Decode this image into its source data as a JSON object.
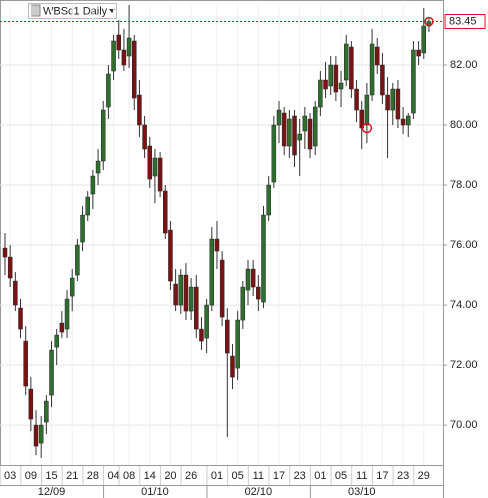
{
  "chart_data": {
    "type": "candlestick",
    "title": "WBSc1 Daily",
    "categories": [
      null,
      "03",
      null,
      null,
      null,
      "09",
      null,
      null,
      null,
      "15",
      null,
      null,
      null,
      "21",
      null,
      null,
      null,
      "28",
      null,
      null,
      null,
      "04",
      null,
      null,
      "08",
      null,
      null,
      null,
      "14",
      null,
      null,
      null,
      "20",
      null,
      null,
      null,
      "26",
      null,
      null,
      null,
      null,
      "01",
      null,
      null,
      null,
      "05",
      null,
      null,
      null,
      "11",
      null,
      null,
      null,
      "17",
      null,
      null,
      null,
      "23",
      null,
      null,
      null,
      "01",
      null,
      null,
      null,
      "05",
      null,
      null,
      null,
      "11",
      null,
      null,
      null,
      "17",
      null,
      null,
      null,
      "23",
      null,
      null,
      null,
      "29",
      null
    ],
    "month_categories": [
      null,
      null,
      null,
      null,
      null,
      null,
      null,
      null,
      null,
      "12/09",
      null,
      null,
      null,
      null,
      null,
      null,
      null,
      null,
      null,
      null,
      null,
      null,
      null,
      null,
      null,
      null,
      null,
      null,
      null,
      "01/10",
      null,
      null,
      null,
      null,
      null,
      null,
      null,
      null,
      null,
      null,
      null,
      null,
      null,
      null,
      null,
      null,
      null,
      null,
      null,
      "02/10",
      null,
      null,
      null,
      null,
      null,
      null,
      null,
      null,
      null,
      null,
      null,
      null,
      null,
      null,
      null,
      null,
      null,
      null,
      null,
      "03/10",
      null,
      null,
      null,
      null,
      null,
      null,
      null,
      null,
      null,
      null,
      null,
      null,
      null
    ],
    "open": [
      75.9,
      75.6,
      74.8,
      73.9,
      72.8,
      71.2,
      70.0,
      69.4,
      70.1,
      71.0,
      72.6,
      73.4,
      73.2,
      74.3,
      75.0,
      76.1,
      77.0,
      77.7,
      78.4,
      78.8,
      80.6,
      81.8,
      83.0,
      82.5,
      82.3,
      82.8,
      81.0,
      80.0,
      79.3,
      78.3,
      78.9,
      77.8,
      76.5,
      74.7,
      74.0,
      75.0,
      73.8,
      74.6,
      73.2,
      72.9,
      74.0,
      76.2,
      75.5,
      73.5,
      72.3,
      71.9,
      73.5,
      74.5,
      75.2,
      74.6,
      74.1,
      77.0,
      78.1,
      80.0,
      80.4,
      79.3,
      80.3,
      79.5,
      79.8,
      80.2,
      79.3,
      80.6,
      81.5,
      81.3,
      82.0,
      81.2,
      81.5,
      82.6,
      81.2,
      80.5,
      80.0,
      81.0,
      82.6,
      82.0,
      81.0,
      80.5,
      81.2,
      80.2,
      80.0,
      80.4,
      82.5,
      82.4,
      83.3
    ],
    "high": [
      76.4,
      76.0,
      75.1,
      74.2,
      73.3,
      71.6,
      70.5,
      70.3,
      71.0,
      72.8,
      73.2,
      73.8,
      74.5,
      75.2,
      76.2,
      77.3,
      77.8,
      78.5,
      79.2,
      80.8,
      82.0,
      83.0,
      83.5,
      83.2,
      84.0,
      83.0,
      81.5,
      80.3,
      79.6,
      79.2,
      79.1,
      78.0,
      76.8,
      75.2,
      75.2,
      75.4,
      74.9,
      75.0,
      73.6,
      74.2,
      76.6,
      76.8,
      75.8,
      73.9,
      72.7,
      73.8,
      74.8,
      75.5,
      75.5,
      75.0,
      77.3,
      78.3,
      80.3,
      80.8,
      80.6,
      80.5,
      80.5,
      80.2,
      80.6,
      80.4,
      80.8,
      81.8,
      82.1,
      82.3,
      82.3,
      81.8,
      83.0,
      82.8,
      81.5,
      80.8,
      81.4,
      83.2,
      82.9,
      82.4,
      81.6,
      81.4,
      81.5,
      80.6,
      80.4,
      82.8,
      82.8,
      83.9,
      83.6
    ],
    "low": [
      75.0,
      74.6,
      73.8,
      72.9,
      71.0,
      69.8,
      69.0,
      68.9,
      69.7,
      70.6,
      72.0,
      72.9,
      72.9,
      73.8,
      74.8,
      75.8,
      76.8,
      77.2,
      78.0,
      78.5,
      80.2,
      81.5,
      82.2,
      81.8,
      81.9,
      80.5,
      79.6,
      78.9,
      77.9,
      77.4,
      77.6,
      76.2,
      74.5,
      73.8,
      73.7,
      73.5,
      73.5,
      72.9,
      72.5,
      72.4,
      73.8,
      75.2,
      73.3,
      69.6,
      71.2,
      71.5,
      73.2,
      74.0,
      74.3,
      73.8,
      73.9,
      76.8,
      77.9,
      79.4,
      79.0,
      78.9,
      78.6,
      78.3,
      79.2,
      78.9,
      79.0,
      80.3,
      80.9,
      81.0,
      80.8,
      80.6,
      81.3,
      80.9,
      80.1,
      79.2,
      79.4,
      80.8,
      81.7,
      80.7,
      78.9,
      80.0,
      79.9,
      79.7,
      79.6,
      80.2,
      82.0,
      82.2,
      83.1
    ],
    "close": [
      75.6,
      74.9,
      74.0,
      73.2,
      71.3,
      70.2,
      69.3,
      70.0,
      70.8,
      72.5,
      73.0,
      73.1,
      74.2,
      74.9,
      76.0,
      77.0,
      77.6,
      78.3,
      78.8,
      80.5,
      81.7,
      82.8,
      82.5,
      82.0,
      82.9,
      80.9,
      80.0,
      79.2,
      78.2,
      78.9,
      77.8,
      76.4,
      74.8,
      74.0,
      75.0,
      73.8,
      74.6,
      73.2,
      72.8,
      74.0,
      76.2,
      75.8,
      73.6,
      72.4,
      71.6,
      73.5,
      74.6,
      75.2,
      74.6,
      74.2,
      77.0,
      78.0,
      80.0,
      80.5,
      79.3,
      80.2,
      79.0,
      79.7,
      80.3,
      79.2,
      80.6,
      81.5,
      81.2,
      82.0,
      81.1,
      81.4,
      82.7,
      81.2,
      80.5,
      79.9,
      81.0,
      82.7,
      82.0,
      81.0,
      80.5,
      81.2,
      80.2,
      80.0,
      80.3,
      82.5,
      82.3,
      83.3,
      83.45
    ],
    "up_color": "#2f6e2f",
    "down_color": "#7a1414",
    "last_price": 83.45,
    "last_price_color": "#e0101a",
    "ylim": [
      68.67,
      84.0
    ],
    "yticks": [
      {
        "value": 70,
        "label": "70.00"
      },
      {
        "value": 72,
        "label": "72.00"
      },
      {
        "value": 74,
        "label": "74.00"
      },
      {
        "value": 76,
        "label": "76.00"
      },
      {
        "value": 78,
        "label": "78.00"
      },
      {
        "value": 80,
        "label": "80.00"
      },
      {
        "value": 82,
        "label": "82.00"
      }
    ],
    "grid": true
  }
}
